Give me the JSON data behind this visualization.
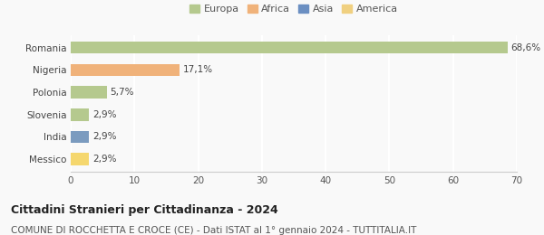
{
  "categories": [
    "Romania",
    "Nigeria",
    "Polonia",
    "Slovenia",
    "India",
    "Messico"
  ],
  "values": [
    68.6,
    17.1,
    5.7,
    2.9,
    2.9,
    2.9
  ],
  "labels": [
    "68,6%",
    "17,1%",
    "5,7%",
    "2,9%",
    "2,9%",
    "2,9%"
  ],
  "bar_colors": [
    "#b5c98e",
    "#f0b27a",
    "#b5c98e",
    "#b5c98e",
    "#7b9bbf",
    "#f5d76e"
  ],
  "legend_entries": [
    {
      "label": "Europa",
      "color": "#b5c98e"
    },
    {
      "label": "Africa",
      "color": "#f0b27a"
    },
    {
      "label": "Asia",
      "color": "#6b8fc2"
    },
    {
      "label": "America",
      "color": "#f0d080"
    }
  ],
  "xlim": [
    0,
    70
  ],
  "xticks": [
    0,
    10,
    20,
    30,
    40,
    50,
    60,
    70
  ],
  "title": "Cittadini Stranieri per Cittadinanza - 2024",
  "subtitle": "COMUNE DI ROCCHETTA E CROCE (CE) - Dati ISTAT al 1° gennaio 2024 - TUTTITALIA.IT",
  "title_fontsize": 9,
  "subtitle_fontsize": 7.5,
  "background_color": "#f9f9f9",
  "grid_color": "#ffffff",
  "bar_label_fontsize": 7.5,
  "tick_label_fontsize": 7.5,
  "legend_fontsize": 8
}
